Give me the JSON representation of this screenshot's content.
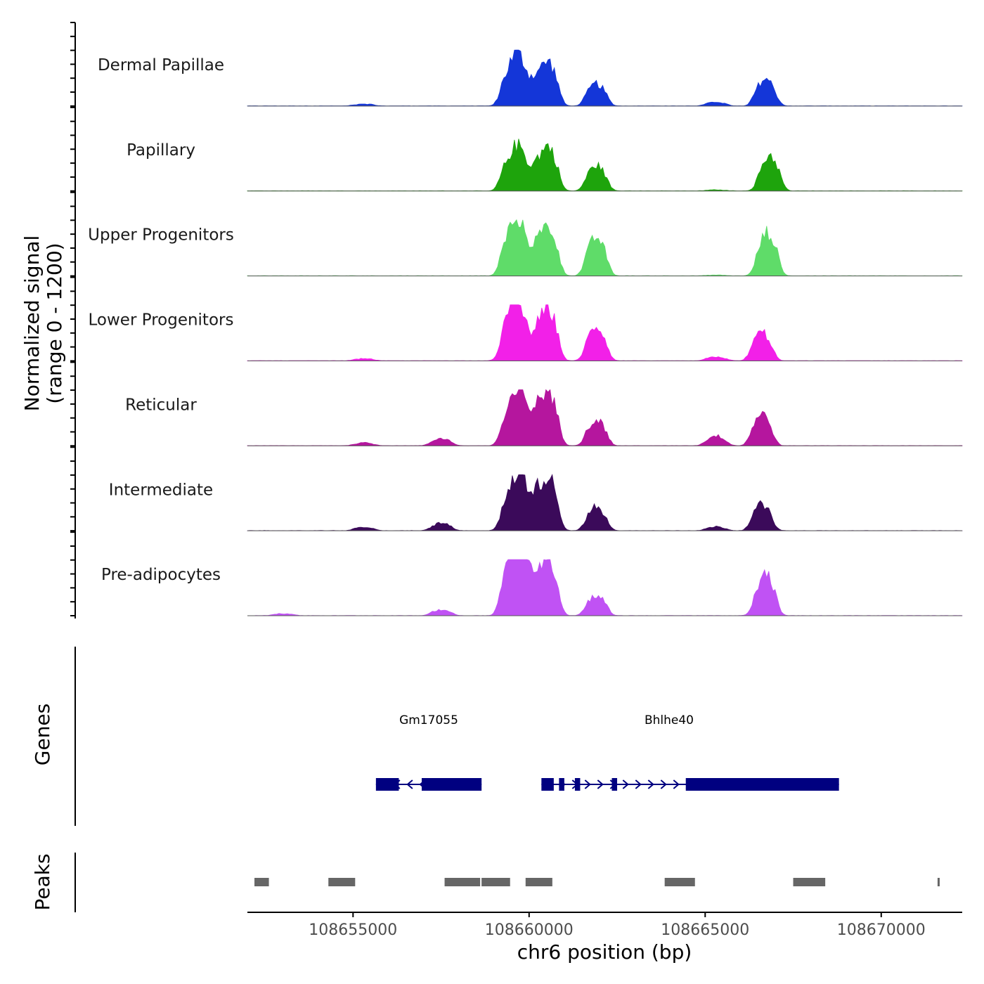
{
  "chart_data": {
    "type": "area",
    "title": "",
    "chromosome": "chr6",
    "xlabel": "chr6 position (bp)",
    "xlim": [
      108652000,
      108672300
    ],
    "xticks": [
      108655000,
      108660000,
      108665000,
      108670000
    ],
    "ylabel_lines": [
      "Normalized signal",
      "(range 0 - 1200)"
    ],
    "ylim": [
      0,
      1200
    ],
    "genes_label": "Genes",
    "peaks_label": "Peaks",
    "peak_fill": "#666666",
    "gene_color": "#000080",
    "tracks": [
      {
        "name": "Dermal Papillae",
        "color": "#1436d8",
        "scale": 1.0,
        "peaks": [
          [
            108660520,
            900
          ],
          [
            108659500,
            810
          ],
          [
            108659900,
            600
          ],
          [
            108666700,
            550
          ],
          [
            108661900,
            450
          ],
          [
            108665300,
            80
          ],
          [
            108655300,
            40
          ]
        ]
      },
      {
        "name": "Papillary",
        "color": "#1ea40c",
        "scale": 1.0,
        "peaks": [
          [
            108660520,
            900
          ],
          [
            108659500,
            700
          ],
          [
            108659900,
            520
          ],
          [
            108666820,
            720
          ],
          [
            108661900,
            520
          ],
          [
            108665300,
            20
          ]
        ]
      },
      {
        "name": "Upper Progenitors",
        "color": "#5fdc69",
        "scale": 1.0,
        "peaks": [
          [
            108660520,
            1000
          ],
          [
            108659500,
            920
          ],
          [
            108659900,
            640
          ],
          [
            108666760,
            870
          ],
          [
            108661900,
            780
          ],
          [
            108665300,
            15
          ]
        ]
      },
      {
        "name": "Lower Progenitors",
        "color": "#f220e8",
        "scale": 1.0,
        "peaks": [
          [
            108660520,
            1060
          ],
          [
            108659500,
            1020
          ],
          [
            108659900,
            560
          ],
          [
            108666600,
            580
          ],
          [
            108661900,
            700
          ],
          [
            108665300,
            80
          ],
          [
            108655300,
            45
          ]
        ]
      },
      {
        "name": "Reticular",
        "color": "#b5169e",
        "scale": 1.0,
        "peaks": [
          [
            108660520,
            1120
          ],
          [
            108659500,
            750
          ],
          [
            108659900,
            760
          ],
          [
            108666600,
            640
          ],
          [
            108661900,
            530
          ],
          [
            108665300,
            200
          ],
          [
            108655300,
            60
          ],
          [
            108657500,
            150
          ]
        ]
      },
      {
        "name": "Intermediate",
        "color": "#3b0a5a",
        "scale": 1.0,
        "peaks": [
          [
            108660520,
            1120
          ],
          [
            108659500,
            760
          ],
          [
            108659900,
            820
          ],
          [
            108666600,
            520
          ],
          [
            108661900,
            470
          ],
          [
            108665300,
            80
          ],
          [
            108655300,
            70
          ],
          [
            108657500,
            150
          ]
        ]
      },
      {
        "name": "Pre-adipocytes",
        "color": "#c052f4",
        "scale": 1.0,
        "peaks": [
          [
            108660520,
            1200
          ],
          [
            108659500,
            1200
          ],
          [
            108659900,
            980
          ],
          [
            108666700,
            840
          ],
          [
            108661900,
            420
          ],
          [
            108653000,
            40
          ],
          [
            108657500,
            120
          ]
        ]
      }
    ],
    "genes": [
      {
        "name": "Gm17055",
        "start": 108655650,
        "end": 108658650,
        "strand": "-",
        "exons": [
          [
            108655650,
            108656300
          ],
          [
            108656950,
            108658650
          ]
        ]
      },
      {
        "name": "Bhlhe40",
        "start": 108660350,
        "end": 108668800,
        "strand": "+",
        "exons": [
          [
            108660350,
            108660700
          ],
          [
            108660850,
            108661000
          ],
          [
            108661300,
            108661450
          ],
          [
            108662350,
            108662500
          ],
          [
            108664450,
            108668800
          ]
        ]
      }
    ],
    "peak_regions": [
      [
        108652200,
        108652650
      ],
      [
        108654300,
        108655100
      ],
      [
        108657600,
        108658650
      ],
      [
        108658650,
        108659500
      ],
      [
        108659900,
        108660700
      ],
      [
        108663850,
        108664750
      ],
      [
        108667500,
        108668450
      ],
      [
        108671600,
        108671700
      ]
    ]
  }
}
